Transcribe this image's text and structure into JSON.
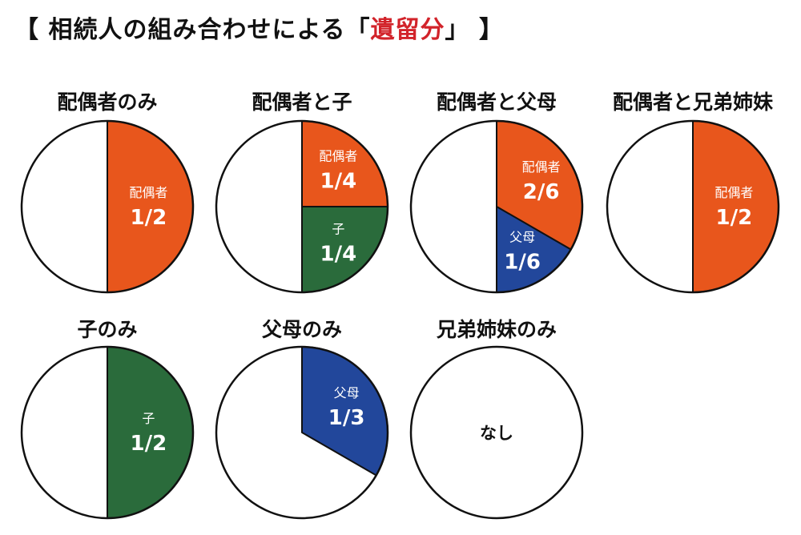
{
  "title": {
    "open": "【 相続人の組み合わせによる「",
    "highlight": "遺留分",
    "close": "」 】",
    "highlight_color": "#d2232a"
  },
  "colors": {
    "spouse": "#e8561c",
    "child": "#2a6b3b",
    "parents": "#22479b",
    "rest": "#ffffff"
  },
  "chart_data": [
    {
      "type": "pie",
      "title": "配偶者のみ",
      "slices": [
        {
          "name": "配偶者",
          "value_label": "1/2",
          "fraction": 0.5,
          "color": "#e8561c"
        }
      ]
    },
    {
      "type": "pie",
      "title": "配偶者と子",
      "slices": [
        {
          "name": "配偶者",
          "value_label": "1/4",
          "fraction": 0.25,
          "color": "#e8561c"
        },
        {
          "name": "子",
          "value_label": "1/4",
          "fraction": 0.25,
          "color": "#2a6b3b"
        }
      ]
    },
    {
      "type": "pie",
      "title": "配偶者と父母",
      "slices": [
        {
          "name": "配偶者",
          "value_label": "2/6",
          "fraction": 0.3333,
          "color": "#e8561c"
        },
        {
          "name": "父母",
          "value_label": "1/6",
          "fraction": 0.1667,
          "color": "#22479b"
        }
      ]
    },
    {
      "type": "pie",
      "title": "配偶者と兄弟姉妹",
      "slices": [
        {
          "name": "配偶者",
          "value_label": "1/2",
          "fraction": 0.5,
          "color": "#e8561c"
        }
      ]
    },
    {
      "type": "pie",
      "title": "子のみ",
      "slices": [
        {
          "name": "子",
          "value_label": "1/2",
          "fraction": 0.5,
          "color": "#2a6b3b"
        }
      ]
    },
    {
      "type": "pie",
      "title": "父母のみ",
      "slices": [
        {
          "name": "父母",
          "value_label": "1/3",
          "fraction": 0.3333,
          "color": "#22479b"
        }
      ]
    },
    {
      "type": "pie",
      "title": "兄弟姉妹のみ",
      "slices": [],
      "empty_label": "なし"
    }
  ]
}
